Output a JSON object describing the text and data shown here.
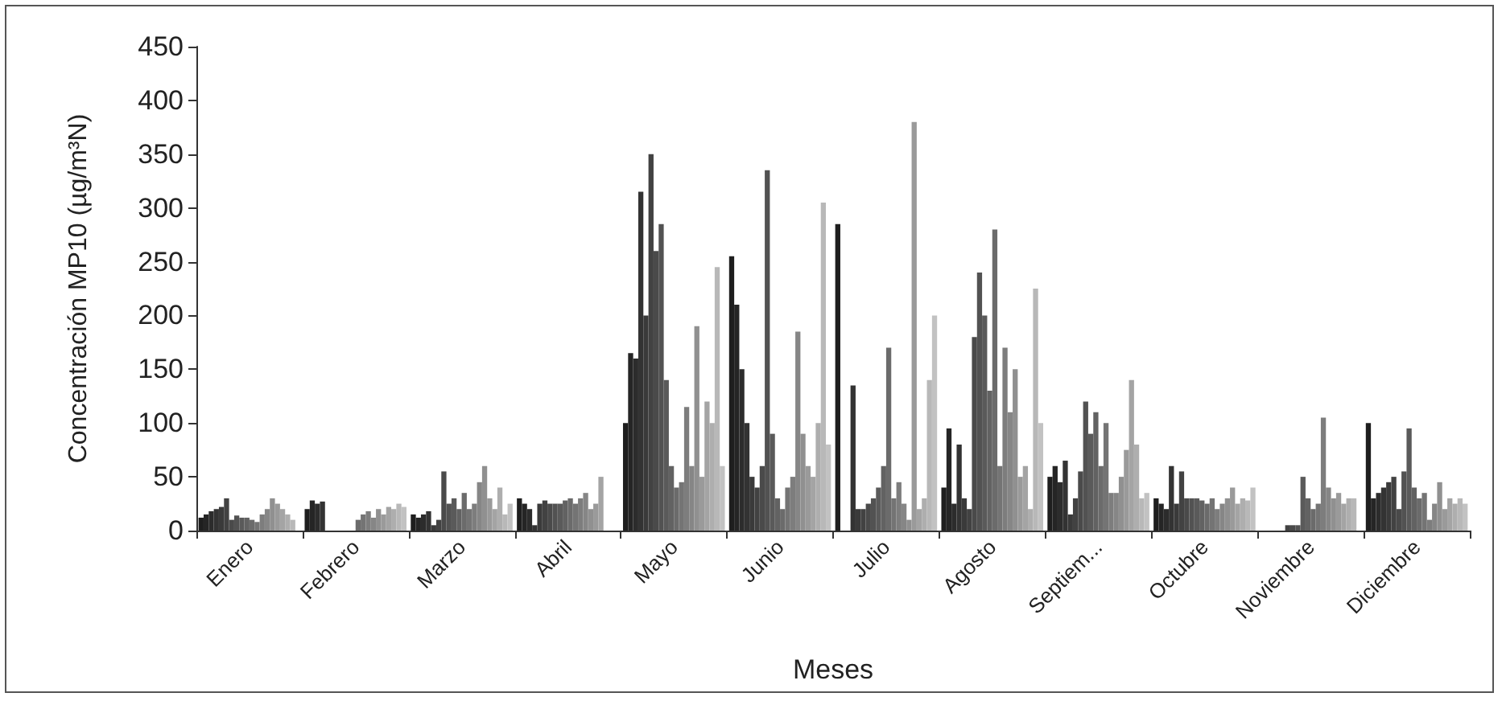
{
  "chart_data": {
    "type": "bar",
    "xlabel": "Meses",
    "ylabel": "Concentración MP10 (µg/m³N)",
    "categories": [
      "Enero",
      "Febrero",
      "Marzo",
      "Abril",
      "Mayo",
      "Junio",
      "Julio",
      "Agosto",
      "Septiem...",
      "Octubre",
      "Noviembre",
      "Diciembre"
    ],
    "ylim": [
      0,
      450
    ],
    "yticks": [
      0,
      50,
      100,
      150,
      200,
      250,
      300,
      350,
      400,
      450
    ],
    "grid": false,
    "series": [
      {
        "color": "#1e1e1e",
        "values": [
          12,
          20,
          15,
          30,
          100,
          255,
          285,
          40,
          50,
          30,
          null,
          100
        ]
      },
      {
        "color": "#252525",
        "values": [
          15,
          28,
          12,
          25,
          165,
          210,
          null,
          95,
          60,
          25,
          null,
          30
        ]
      },
      {
        "color": "#2c2c2c",
        "values": [
          18,
          25,
          15,
          20,
          160,
          150,
          null,
          25,
          45,
          20,
          null,
          35
        ]
      },
      {
        "color": "#333333",
        "values": [
          20,
          27,
          18,
          5,
          315,
          100,
          135,
          80,
          65,
          60,
          null,
          40
        ]
      },
      {
        "color": "#3a3a3a",
        "values": [
          22,
          null,
          5,
          25,
          200,
          50,
          20,
          30,
          15,
          25,
          null,
          45
        ]
      },
      {
        "color": "#424242",
        "values": [
          30,
          null,
          10,
          28,
          350,
          40,
          20,
          20,
          30,
          55,
          5,
          50
        ]
      },
      {
        "color": "#4a4a4a",
        "values": [
          10,
          null,
          55,
          25,
          260,
          60,
          25,
          180,
          55,
          30,
          5,
          20
        ]
      },
      {
        "color": "#525252",
        "values": [
          14,
          null,
          25,
          25,
          285,
          335,
          30,
          240,
          120,
          30,
          5,
          55
        ]
      },
      {
        "color": "#5a5a5a",
        "values": [
          12,
          null,
          30,
          25,
          140,
          90,
          40,
          200,
          90,
          30,
          50,
          95
        ]
      },
      {
        "color": "#626262",
        "values": [
          12,
          null,
          20,
          28,
          60,
          30,
          60,
          130,
          110,
          28,
          30,
          40
        ]
      },
      {
        "color": "#6b6b6b",
        "values": [
          10,
          10,
          35,
          30,
          40,
          20,
          170,
          280,
          60,
          25,
          20,
          30
        ]
      },
      {
        "color": "#747474",
        "values": [
          8,
          15,
          20,
          25,
          45,
          40,
          30,
          60,
          100,
          30,
          25,
          35
        ]
      },
      {
        "color": "#7d7d7d",
        "values": [
          15,
          18,
          25,
          30,
          115,
          50,
          45,
          170,
          35,
          20,
          105,
          10
        ]
      },
      {
        "color": "#868686",
        "values": [
          20,
          12,
          45,
          35,
          60,
          185,
          25,
          110,
          35,
          25,
          40,
          25
        ]
      },
      {
        "color": "#909090",
        "values": [
          30,
          20,
          60,
          20,
          190,
          90,
          10,
          150,
          50,
          30,
          30,
          45
        ]
      },
      {
        "color": "#9a9a9a",
        "values": [
          25,
          15,
          30,
          25,
          50,
          60,
          380,
          50,
          75,
          40,
          35,
          20
        ]
      },
      {
        "color": "#a4a4a4",
        "values": [
          20,
          22,
          20,
          50,
          120,
          50,
          20,
          60,
          140,
          25,
          25,
          30
        ]
      },
      {
        "color": "#aeaeae",
        "values": [
          15,
          20,
          40,
          null,
          100,
          100,
          30,
          20,
          80,
          30,
          30,
          25
        ]
      },
      {
        "color": "#b8b8b8",
        "values": [
          10,
          25,
          15,
          null,
          245,
          305,
          140,
          225,
          30,
          28,
          30,
          30
        ]
      },
      {
        "color": "#c2c2c2",
        "values": [
          null,
          22,
          25,
          null,
          60,
          80,
          200,
          100,
          35,
          40,
          null,
          25
        ]
      }
    ]
  }
}
